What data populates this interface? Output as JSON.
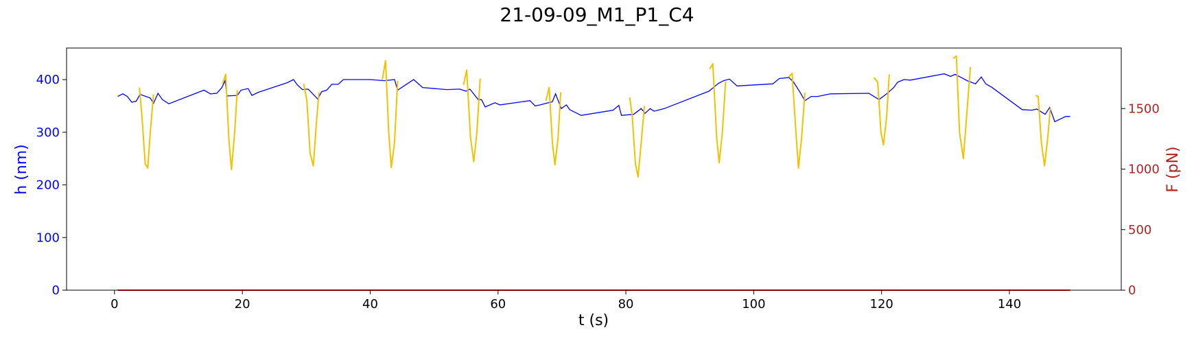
{
  "chart_data": {
    "type": "line",
    "title": "21-09-09_M1_P1_C4",
    "xlabel": "t (s)",
    "ylabel_left": "h (nm)",
    "ylabel_right": "F (pN)",
    "xlim": [
      -7.5,
      157.5
    ],
    "ylim_left": [
      0,
      460
    ],
    "ylim_right": [
      0,
      2000
    ],
    "x_ticks": [
      0,
      20,
      40,
      60,
      80,
      100,
      120,
      140
    ],
    "y_left_ticks": [
      0,
      100,
      200,
      300,
      400
    ],
    "y_right_ticks": [
      0,
      500,
      1000,
      1500
    ],
    "grid": false,
    "colors": {
      "h_line": "#0000ff",
      "approach_segments": "#f2c200",
      "force_line": "#8b0000",
      "left_axis_text": "#0000ff",
      "right_axis_text": "#b22222"
    },
    "series": [
      {
        "axis": "left",
        "x": [
          0.5,
          1.3,
          2.0,
          2.7,
          3.4,
          4.0,
          5.6,
          6.1,
          6.8,
          7.5,
          8.5,
          14.0,
          15.0,
          16.0,
          16.8,
          17.3,
          17.6,
          19.2,
          19.8,
          20.9,
          21.5,
          22.5,
          27.0,
          28.0,
          28.6,
          29.4,
          30.3,
          31.8,
          32.4,
          33.2,
          34.0,
          35.0,
          35.8,
          40.0,
          42.2,
          43.8,
          44.3,
          46.8,
          48.2,
          52.0,
          54.0,
          55.0,
          55.6,
          56.9,
          57.4,
          58.0,
          59.5,
          60.3,
          65.0,
          65.8,
          66.6,
          67.5,
          68.5,
          69.0,
          69.9,
          70.7,
          71.2,
          73.0,
          78.0,
          78.9,
          79.3,
          81.2,
          82.4,
          83.0,
          83.8,
          84.4,
          86.0,
          93.0,
          94.5,
          95.3,
          96.2,
          97.4,
          103.0,
          104.0,
          105.5,
          106.2,
          107.2,
          108.0,
          109.0,
          110.0,
          112.0,
          118.0,
          119.6,
          120.8,
          121.9,
          122.5,
          123.5,
          124.5,
          129.8,
          130.8,
          131.5,
          132.6,
          133.4,
          134.7,
          135.6,
          136.3,
          137.3,
          142.0,
          143.5,
          144.3,
          145.6,
          146.3,
          147.1,
          148.8,
          149.5
        ],
        "y": [
          368,
          373,
          368,
          357,
          359,
          372,
          365,
          355,
          374,
          362,
          354,
          380,
          373,
          374,
          385,
          398,
          369,
          370,
          380,
          383,
          370,
          376,
          394,
          400,
          390,
          381,
          382,
          363,
          377,
          380,
          391,
          391,
          400,
          400,
          398,
          400,
          380,
          400,
          385,
          381,
          382,
          378,
          382,
          362,
          362,
          348,
          356,
          352,
          360,
          350,
          352,
          355,
          358,
          373,
          345,
          352,
          343,
          332,
          342,
          351,
          332,
          334,
          345,
          336,
          345,
          340,
          345,
          378,
          393,
          398,
          401,
          388,
          392,
          402,
          404,
          396,
          377,
          360,
          368,
          368,
          373,
          374,
          362,
          373,
          385,
          395,
          400,
          399,
          411,
          406,
          410,
          403,
          398,
          392,
          405,
          392,
          385,
          343,
          342,
          344,
          334,
          347,
          320,
          330,
          330
        ]
      },
      {
        "axis": "left",
        "segments": [
          {
            "x": [
              3.9,
              4.3,
              4.8,
              5.2,
              5.6,
              6.1
            ],
            "y": [
              385,
              330,
              240,
              232,
              300,
              372
            ]
          },
          {
            "x": [
              16.9,
              17.4,
              17.9,
              18.3,
              18.8,
              19.2
            ],
            "y": [
              392,
              410,
              285,
              229,
              300,
              380
            ]
          },
          {
            "x": [
              29.6,
              30.1,
              30.6,
              31.1,
              31.6,
              32.0
            ],
            "y": [
              392,
              360,
              260,
              236,
              320,
              376
            ]
          },
          {
            "x": [
              41.9,
              42.4,
              42.9,
              43.3,
              43.8,
              44.3
            ],
            "y": [
              400,
              436,
              300,
              233,
              280,
              398
            ]
          },
          {
            "x": [
              54.6,
              55.1,
              55.7,
              56.2,
              56.7,
              57.2
            ],
            "y": [
              390,
              418,
              290,
              244,
              300,
              402
            ]
          },
          {
            "x": [
              67.5,
              68.0,
              68.5,
              68.9,
              69.4,
              69.8
            ],
            "y": [
              360,
              385,
              280,
              238,
              290,
              376
            ]
          },
          {
            "x": [
              80.6,
              81.0,
              81.5,
              81.9,
              82.4,
              82.9
            ],
            "y": [
              366,
              330,
              240,
              215,
              280,
              350
            ]
          },
          {
            "x": [
              93.1,
              93.6,
              94.2,
              94.6,
              95.1,
              95.6
            ],
            "y": [
              420,
              430,
              290,
              242,
              300,
              396
            ]
          },
          {
            "x": [
              105.5,
              106.0,
              106.6,
              107.0,
              107.5,
              108.0
            ],
            "y": [
              405,
              412,
              300,
              232,
              290,
              375
            ]
          },
          {
            "x": [
              118.8,
              119.4,
              119.9,
              120.3,
              120.8,
              121.2
            ],
            "y": [
              404,
              395,
              300,
              276,
              330,
              410
            ]
          },
          {
            "x": [
              131.2,
              131.7,
              132.2,
              132.8,
              133.3,
              133.9
            ],
            "y": [
              440,
              445,
              300,
              250,
              330,
              424
            ]
          },
          {
            "x": [
              144.1,
              144.5,
              145.0,
              145.5,
              146.0,
              146.4
            ],
            "y": [
              370,
              368,
              280,
              236,
              290,
              346
            ]
          }
        ]
      },
      {
        "axis": "right",
        "x": [
          0.5,
          149.5
        ],
        "y": [
          0,
          0
        ]
      }
    ]
  }
}
